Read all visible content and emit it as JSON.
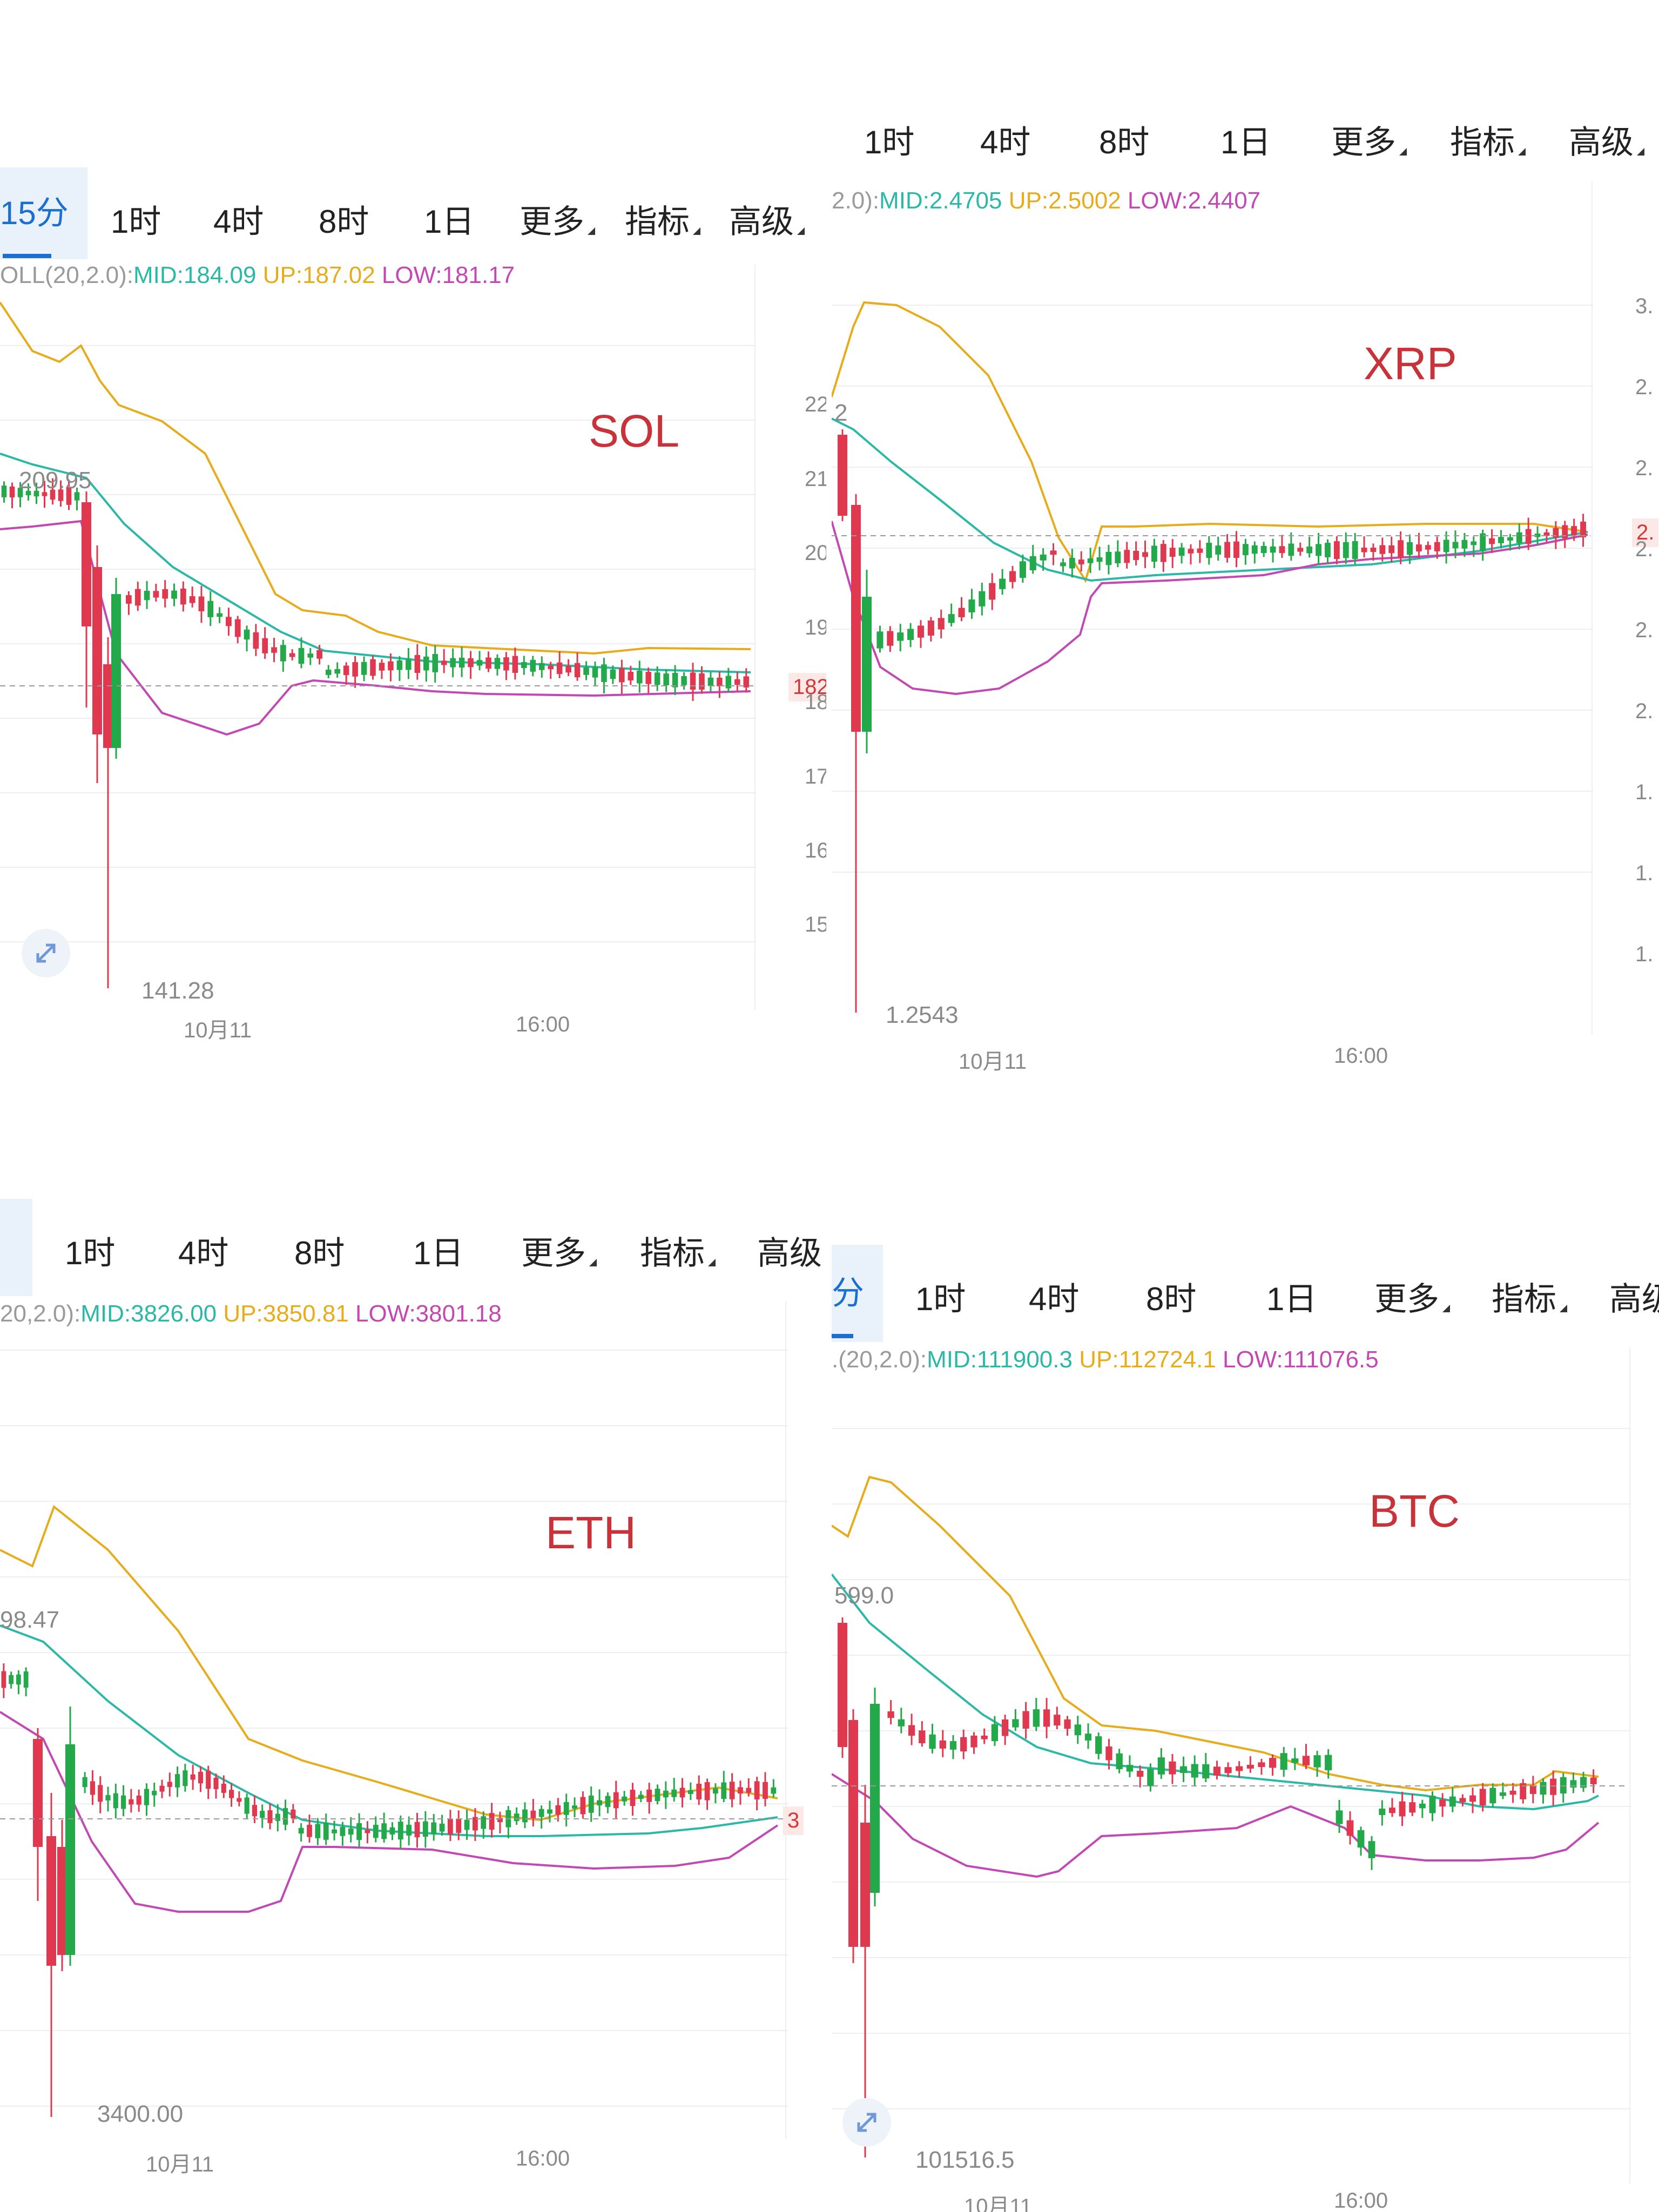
{
  "colors": {
    "up": "#23a84a",
    "down": "#e0384f",
    "mid": "#2bb8a6",
    "upper": "#e6ac1c",
    "lower": "#c248b4",
    "grid": "#eeeeee"
  },
  "panels": [
    {
      "coin": "SOL",
      "tabs": [
        {
          "label": "15分",
          "active": true
        },
        {
          "label": "1时"
        },
        {
          "label": "4时"
        },
        {
          "label": "8时"
        },
        {
          "label": "1日"
        },
        {
          "label": "更多",
          "dropdown": true
        },
        {
          "label": "指标",
          "dropdown": true
        },
        {
          "label": "高级",
          "dropdown": true
        }
      ],
      "boll": {
        "prefix": "OLL(20,2.0):",
        "mid": "MID:184.09",
        "up": "UP:187.02",
        "low": "LOW:181.17"
      },
      "annotations": {
        "high": "209.95",
        "low": "141.28",
        "price_tag": "182."
      },
      "xlabels": [
        "10月11",
        "16:00"
      ],
      "yticks": [
        "22",
        "21",
        "20",
        "19",
        "18",
        "17",
        "16",
        "15"
      ],
      "chart_data": {
        "type": "candlestick",
        "series": [
          {
            "name": "MID"
          },
          {
            "name": "UP"
          },
          {
            "name": "LOW"
          }
        ],
        "low_value": 141.28,
        "high_value": 209.95
      }
    },
    {
      "coin": "XRP",
      "tabs": [
        {
          "label": "1时"
        },
        {
          "label": "4时"
        },
        {
          "label": "8时"
        },
        {
          "label": "1日"
        },
        {
          "label": "更多",
          "dropdown": true
        },
        {
          "label": "指标",
          "dropdown": true
        },
        {
          "label": "高级",
          "dropdown": true
        }
      ],
      "boll": {
        "prefix": "2.0):",
        "mid": "MID:2.4705",
        "up": "UP:2.5002",
        "low": "LOW:2.4407"
      },
      "annotations": {
        "high": "2",
        "low": "1.2543",
        "price_tag": "2."
      },
      "xlabels": [
        "10月11",
        "16:00"
      ],
      "yticks": [
        "3.",
        "2.",
        "2.",
        "2.",
        "2.",
        "2.",
        "1.",
        "1.",
        "1."
      ],
      "chart_data": {
        "type": "candlestick",
        "low_value": 1.2543
      }
    },
    {
      "coin": "ETH",
      "tabs": [
        {
          "label": "",
          "active": true
        },
        {
          "label": "1时"
        },
        {
          "label": "4时"
        },
        {
          "label": "8时"
        },
        {
          "label": "1日"
        },
        {
          "label": "更多",
          "dropdown": true
        },
        {
          "label": "指标",
          "dropdown": true
        },
        {
          "label": "高级"
        }
      ],
      "boll": {
        "prefix": "20,2.0):",
        "mid": "MID:3826.00",
        "up": "UP:3850.81",
        "low": "LOW:3801.18"
      },
      "annotations": {
        "high": "98.47",
        "low": "3400.00",
        "price_tag": "3"
      },
      "xlabels": [
        "10月11",
        "16:00"
      ],
      "yticks": [],
      "chart_data": {
        "type": "candlestick",
        "low_value": 3400.0
      }
    },
    {
      "coin": "BTC",
      "tabs": [
        {
          "label": "分",
          "active": true
        },
        {
          "label": "1时"
        },
        {
          "label": "4时"
        },
        {
          "label": "8时"
        },
        {
          "label": "1日"
        },
        {
          "label": "更多",
          "dropdown": true
        },
        {
          "label": "指标",
          "dropdown": true
        },
        {
          "label": "高级"
        }
      ],
      "boll": {
        "prefix": ".(20,2.0):",
        "mid": "MID:111900.3",
        "up": "UP:112724.1",
        "low": "LOW:111076.5"
      },
      "annotations": {
        "high": "599.0",
        "low": "101516.5",
        "price_tag": ""
      },
      "xlabels": [
        "10月11",
        "16:00"
      ],
      "yticks": [],
      "chart_data": {
        "type": "candlestick",
        "low_value": 101516.5
      }
    }
  ]
}
